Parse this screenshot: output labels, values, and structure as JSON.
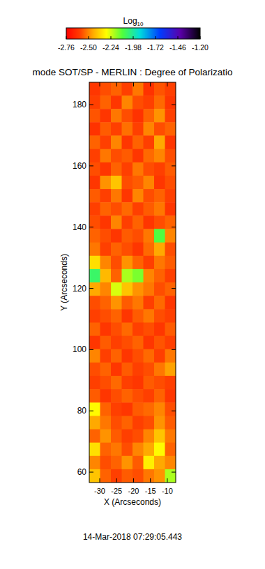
{
  "chart_data": {
    "type": "heatmap",
    "title": "mode SOT/SP - MERLIN : Degree of Polarizatio",
    "x_label": "X (Arcseconds)",
    "y_label": "Y (Arcseconds)",
    "date": "14-Mar-2018 07:29:05.443",
    "colorbar_label": "Log10",
    "colorbar_range": [
      -2.76,
      -1.2
    ],
    "colorbar_ticks": [
      {
        "value": -2.76,
        "label": "-2.76"
      },
      {
        "value": -2.5,
        "label": "-2.50"
      },
      {
        "value": -2.24,
        "label": "-2.24"
      },
      {
        "value": -1.98,
        "label": "-1.98"
      },
      {
        "value": -1.72,
        "label": "-1.72"
      },
      {
        "value": -1.46,
        "label": "-1.46"
      },
      {
        "value": -1.2,
        "label": "-1.20"
      }
    ],
    "xlim": [
      -33.1,
      -7.5
    ],
    "ylim": [
      56.6,
      187.3
    ],
    "xticks": [
      -30,
      -25,
      -20,
      -15,
      -10
    ],
    "yticks": [
      60,
      80,
      100,
      120,
      140,
      160,
      180
    ],
    "x": [
      -31.5,
      -28.3,
      -25.1,
      -21.9,
      -18.7,
      -15.5,
      -12.3,
      -9.1
    ],
    "y": [
      185.1,
      180.8,
      176.4,
      172.1,
      167.7,
      163.3,
      159.0,
      154.6,
      150.3,
      145.9,
      141.6,
      137.2,
      132.8,
      128.5,
      124.1,
      119.8,
      115.4,
      111.0,
      106.7,
      102.3,
      98.0,
      93.6,
      89.3,
      84.9,
      80.5,
      76.2,
      71.8,
      67.5,
      63.1,
      58.8
    ],
    "values": [
      [
        -2.62,
        -2.58,
        -2.55,
        -2.6,
        -2.52,
        -2.63,
        -2.57,
        -2.6
      ],
      [
        -2.6,
        -2.55,
        -2.62,
        -2.5,
        -2.58,
        -2.6,
        -2.54,
        -2.62
      ],
      [
        -2.57,
        -2.62,
        -2.52,
        -2.58,
        -2.63,
        -2.55,
        -2.48,
        -2.6
      ],
      [
        -2.63,
        -2.56,
        -2.6,
        -2.53,
        -2.6,
        -2.5,
        -2.58,
        -2.55
      ],
      [
        -2.55,
        -2.6,
        -2.5,
        -2.62,
        -2.55,
        -2.6,
        -2.45,
        -2.62
      ],
      [
        -2.6,
        -2.52,
        -2.58,
        -2.56,
        -2.62,
        -2.54,
        -2.5,
        -2.58
      ],
      [
        -2.58,
        -2.62,
        -2.55,
        -2.6,
        -2.52,
        -2.58,
        -2.6,
        -2.56
      ],
      [
        -2.62,
        -2.48,
        -2.4,
        -2.58,
        -2.56,
        -2.5,
        -2.62,
        -2.58
      ],
      [
        -2.56,
        -2.6,
        -2.52,
        -2.62,
        -2.5,
        -2.58,
        -2.55,
        -2.6
      ],
      [
        -2.6,
        -2.55,
        -2.58,
        -2.54,
        -2.6,
        -2.56,
        -2.52,
        -2.62
      ],
      [
        -2.58,
        -2.62,
        -2.5,
        -2.6,
        -2.55,
        -2.62,
        -2.58,
        -2.55
      ],
      [
        -2.55,
        -2.58,
        -2.62,
        -2.56,
        -2.58,
        -2.52,
        -2.1,
        -2.5
      ],
      [
        -2.52,
        -2.6,
        -2.55,
        -2.58,
        -2.62,
        -2.54,
        -2.45,
        -2.58
      ],
      [
        -2.35,
        -2.5,
        -2.58,
        -2.48,
        -2.55,
        -2.6,
        -2.52,
        -2.56
      ],
      [
        -2.05,
        -2.42,
        -2.55,
        -2.2,
        -2.15,
        -2.5,
        -2.55,
        -2.6
      ],
      [
        -2.45,
        -2.5,
        -2.25,
        -2.4,
        -2.48,
        -2.52,
        -2.58,
        -2.55
      ],
      [
        -2.58,
        -2.55,
        -2.48,
        -2.56,
        -2.52,
        -2.6,
        -2.54,
        -2.62
      ],
      [
        -2.6,
        -2.58,
        -2.55,
        -2.62,
        -2.56,
        -2.52,
        -2.58,
        -2.6
      ],
      [
        -2.55,
        -2.62,
        -2.58,
        -2.54,
        -2.6,
        -2.58,
        -2.62,
        -2.56
      ],
      [
        -2.62,
        -2.56,
        -2.6,
        -2.58,
        -2.55,
        -2.62,
        -2.57,
        -2.6
      ],
      [
        -2.5,
        -2.6,
        -2.55,
        -2.62,
        -2.58,
        -2.54,
        -2.6,
        -2.52
      ],
      [
        -2.58,
        -2.55,
        -2.62,
        -2.56,
        -2.6,
        -2.58,
        -2.52,
        -2.46
      ],
      [
        -2.6,
        -2.58,
        -2.54,
        -2.6,
        -2.62,
        -2.56,
        -2.58,
        -2.6
      ],
      [
        -2.56,
        -2.62,
        -2.58,
        -2.55,
        -2.58,
        -2.6,
        -2.55,
        -2.62
      ],
      [
        -2.3,
        -2.55,
        -2.6,
        -2.62,
        -2.56,
        -2.54,
        -2.5,
        -2.58
      ],
      [
        -2.45,
        -2.52,
        -2.58,
        -2.55,
        -2.6,
        -2.58,
        -2.48,
        -2.56
      ],
      [
        -2.55,
        -2.48,
        -2.56,
        -2.6,
        -2.58,
        -2.5,
        -2.4,
        -2.52
      ],
      [
        -2.35,
        -2.55,
        -2.52,
        -2.58,
        -2.5,
        -2.45,
        -2.3,
        -2.55
      ],
      [
        -2.5,
        -2.58,
        -2.55,
        -2.48,
        -2.56,
        -2.32,
        -2.45,
        -2.5
      ],
      [
        -2.4,
        -2.55,
        -2.6,
        -2.56,
        -2.58,
        -2.52,
        -2.48,
        -2.2
      ]
    ]
  }
}
